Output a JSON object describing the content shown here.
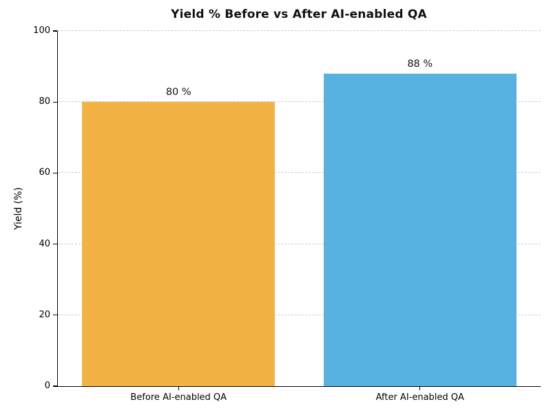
{
  "chart_data": {
    "type": "bar",
    "title": "Yield % Before vs After AI-enabled QA",
    "xlabel": "",
    "ylabel": "Yield (%)",
    "categories": [
      "Before AI-enabled QA",
      "After AI-enabled QA"
    ],
    "values": [
      80,
      88
    ],
    "value_labels": [
      "80 %",
      "88 %"
    ],
    "bar_colors": [
      "#F2B344",
      "#58B2E0"
    ],
    "ylim": [
      0,
      100
    ],
    "yticks": [
      0,
      20,
      40,
      60,
      80,
      100
    ],
    "grid": "horizontal-dashed",
    "grid_color": "#cccccc",
    "legend_position": "none"
  }
}
